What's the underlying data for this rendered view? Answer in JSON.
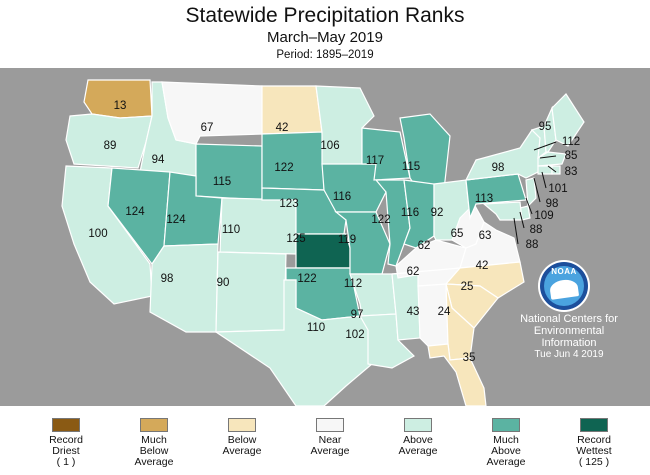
{
  "title": "Statewide Precipitation Ranks",
  "subtitle": "March–May 2019",
  "period": "Period: 1895–2019",
  "colors": {
    "record_driest": "#8a5a14",
    "much_below": "#d4a95a",
    "below": "#f7e6bc",
    "near": "#f7f7f7",
    "above": "#cdeee2",
    "much_above": "#5bb3a2",
    "record_wettest": "#0f6452",
    "background_land": "#9b9b9b",
    "water": "#9b9b9b"
  },
  "states": [
    {
      "id": "WA",
      "rank": "13",
      "cat": "much_below"
    },
    {
      "id": "OR",
      "rank": "89",
      "cat": "above"
    },
    {
      "id": "CA",
      "rank": "100",
      "cat": "above"
    },
    {
      "id": "ID",
      "rank": "94",
      "cat": "above"
    },
    {
      "id": "NV",
      "rank": "124",
      "cat": "much_above"
    },
    {
      "id": "MT",
      "rank": "67",
      "cat": "near"
    },
    {
      "id": "WY",
      "rank": "115",
      "cat": "much_above"
    },
    {
      "id": "UT",
      "rank": "124",
      "cat": "much_above"
    },
    {
      "id": "AZ",
      "rank": "98",
      "cat": "above"
    },
    {
      "id": "CO",
      "rank": "110",
      "cat": "above"
    },
    {
      "id": "NM",
      "rank": "90",
      "cat": "above"
    },
    {
      "id": "ND",
      "rank": "42",
      "cat": "below"
    },
    {
      "id": "SD",
      "rank": "122",
      "cat": "much_above"
    },
    {
      "id": "NE",
      "rank": "123",
      "cat": "much_above"
    },
    {
      "id": "KS",
      "rank": "125",
      "cat": "record_wettest"
    },
    {
      "id": "OK",
      "rank": "122",
      "cat": "much_above"
    },
    {
      "id": "TX",
      "rank": "110",
      "cat": "above"
    },
    {
      "id": "MN",
      "rank": "106",
      "cat": "above"
    },
    {
      "id": "IA",
      "rank": "116",
      "cat": "much_above"
    },
    {
      "id": "MO",
      "rank": "119",
      "cat": "much_above"
    },
    {
      "id": "AR",
      "rank": "112",
      "cat": "above"
    },
    {
      "id": "LA",
      "rank": "102",
      "cat": "above"
    },
    {
      "id": "WI",
      "rank": "117",
      "cat": "much_above"
    },
    {
      "id": "IL",
      "rank": "122",
      "cat": "much_above"
    },
    {
      "id": "MS",
      "rank": "97",
      "cat": "above"
    },
    {
      "id": "MI",
      "rank": "115",
      "cat": "much_above"
    },
    {
      "id": "IN",
      "rank": "116",
      "cat": "much_above"
    },
    {
      "id": "KY",
      "rank": "62",
      "cat": "near"
    },
    {
      "id": "TN",
      "rank": "62",
      "cat": "near"
    },
    {
      "id": "AL",
      "rank": "43",
      "cat": "near"
    },
    {
      "id": "OH",
      "rank": "92",
      "cat": "above"
    },
    {
      "id": "WV",
      "rank": "65",
      "cat": "near"
    },
    {
      "id": "VA",
      "rank": "63",
      "cat": "near"
    },
    {
      "id": "NC",
      "rank": "42",
      "cat": "below"
    },
    {
      "id": "SC",
      "rank": "25",
      "cat": "below"
    },
    {
      "id": "GA",
      "rank": "24",
      "cat": "below"
    },
    {
      "id": "FL",
      "rank": "35",
      "cat": "below"
    },
    {
      "id": "PA",
      "rank": "113",
      "cat": "much_above"
    },
    {
      "id": "NY",
      "rank": "98",
      "cat": "above"
    },
    {
      "id": "VT",
      "rank": "",
      "cat": "above"
    },
    {
      "id": "NH",
      "rank": "",
      "cat": "above"
    },
    {
      "id": "ME",
      "rank": "95",
      "cat": "above"
    },
    {
      "id": "MA",
      "rank": "",
      "cat": "above"
    },
    {
      "id": "CT",
      "rank": "",
      "cat": "above"
    },
    {
      "id": "RI",
      "rank": "",
      "cat": "above"
    },
    {
      "id": "NJ",
      "rank": "",
      "cat": "above"
    },
    {
      "id": "DE",
      "rank": "",
      "cat": "above"
    },
    {
      "id": "MD",
      "rank": "",
      "cat": "above"
    }
  ],
  "callouts": [
    "112",
    "85",
    "83",
    "101",
    "98",
    "109",
    "88",
    "88"
  ],
  "noaa_logo_text": "NOAA",
  "ncei": {
    "line1": "National Centers for",
    "line2": "Environmental",
    "line3": "Information",
    "date": "Tue Jun  4 2019"
  },
  "legend": [
    {
      "key": "record_driest",
      "line1": "Record",
      "line2": "Driest",
      "line3": "( 1 )"
    },
    {
      "key": "much_below",
      "line1": "Much",
      "line2": "Below",
      "line3": "Average"
    },
    {
      "key": "below",
      "line1": "Below",
      "line2": "Average",
      "line3": ""
    },
    {
      "key": "near",
      "line1": "Near",
      "line2": "Average",
      "line3": ""
    },
    {
      "key": "above",
      "line1": "Above",
      "line2": "Average",
      "line3": ""
    },
    {
      "key": "much_above",
      "line1": "Much",
      "line2": "Above",
      "line3": "Average"
    },
    {
      "key": "record_wettest",
      "line1": "Record",
      "line2": "Wettest",
      "line3": "( 125 )"
    }
  ]
}
